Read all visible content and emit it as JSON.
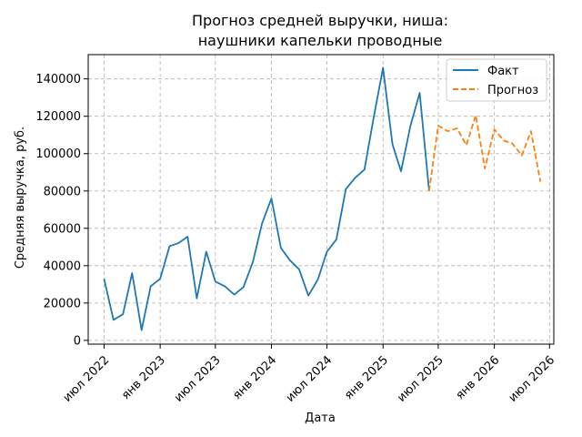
{
  "chart_data": {
    "type": "line",
    "title_lines": [
      "Прогноз средней выручки, ниша:",
      "наушники капельки проводные"
    ],
    "xlabel": "Дата",
    "ylabel": "Средняя выручка, руб.",
    "xlim": [
      "2022-05-10",
      "2026-07-15"
    ],
    "ylim": [
      -2000,
      153000
    ],
    "grid": true,
    "legend_position": "top-right",
    "x_ticks": [
      {
        "label": "июл 2022",
        "date": "2022-07-01"
      },
      {
        "label": "янв 2023",
        "date": "2023-01-01"
      },
      {
        "label": "июл 2023",
        "date": "2023-07-01"
      },
      {
        "label": "янв 2024",
        "date": "2024-01-01"
      },
      {
        "label": "июл 2024",
        "date": "2024-07-01"
      },
      {
        "label": "янв 2025",
        "date": "2025-01-01"
      },
      {
        "label": "июл 2025",
        "date": "2025-07-01"
      },
      {
        "label": "янв 2026",
        "date": "2026-01-01"
      },
      {
        "label": "июл 2026",
        "date": "2026-07-01"
      }
    ],
    "y_ticks": [
      {
        "label": "0",
        "value": 0
      },
      {
        "label": "20000",
        "value": 20000
      },
      {
        "label": "40000",
        "value": 40000
      },
      {
        "label": "60000",
        "value": 60000
      },
      {
        "label": "80000",
        "value": 80000
      },
      {
        "label": "100000",
        "value": 100000
      },
      {
        "label": "120000",
        "value": 120000
      },
      {
        "label": "140000",
        "value": 140000
      }
    ],
    "series": [
      {
        "name": "Факт",
        "color": "#1f77b4",
        "style": "solid",
        "x": [
          "2022-07-01",
          "2022-08-01",
          "2022-09-01",
          "2022-10-01",
          "2022-11-01",
          "2022-12-01",
          "2023-01-01",
          "2023-02-01",
          "2023-03-01",
          "2023-04-01",
          "2023-05-01",
          "2023-06-01",
          "2023-07-01",
          "2023-08-01",
          "2023-09-01",
          "2023-10-01",
          "2023-11-01",
          "2023-12-01",
          "2024-01-01",
          "2024-02-01",
          "2024-03-01",
          "2024-04-01",
          "2024-05-01",
          "2024-06-01",
          "2024-07-01",
          "2024-08-01",
          "2024-09-01",
          "2024-10-01",
          "2024-11-01",
          "2024-12-01",
          "2025-01-01",
          "2025-02-01",
          "2025-03-01",
          "2025-04-01",
          "2025-05-01",
          "2025-06-01"
        ],
        "y": [
          33000,
          11000,
          14000,
          36000,
          5500,
          29000,
          33000,
          50500,
          52000,
          55500,
          22500,
          47500,
          31500,
          29000,
          24500,
          28500,
          42000,
          62500,
          76000,
          49500,
          43000,
          38000,
          24000,
          32500,
          47500,
          54000,
          81000,
          87000,
          91500,
          119000,
          146000,
          105000,
          90500,
          115000,
          132500,
          80000
        ]
      },
      {
        "name": "Прогноз",
        "color": "#ff7f0e",
        "style": "dashed",
        "x": [
          "2025-06-01",
          "2025-07-01",
          "2025-08-01",
          "2025-09-01",
          "2025-10-01",
          "2025-11-01",
          "2025-12-01",
          "2026-01-01",
          "2026-02-01",
          "2026-03-01",
          "2026-04-01",
          "2026-05-01",
          "2026-06-01"
        ],
        "y": [
          80000,
          115000,
          112000,
          113500,
          104500,
          120500,
          92000,
          113000,
          107000,
          105500,
          99000,
          112000,
          85000
        ]
      }
    ]
  }
}
